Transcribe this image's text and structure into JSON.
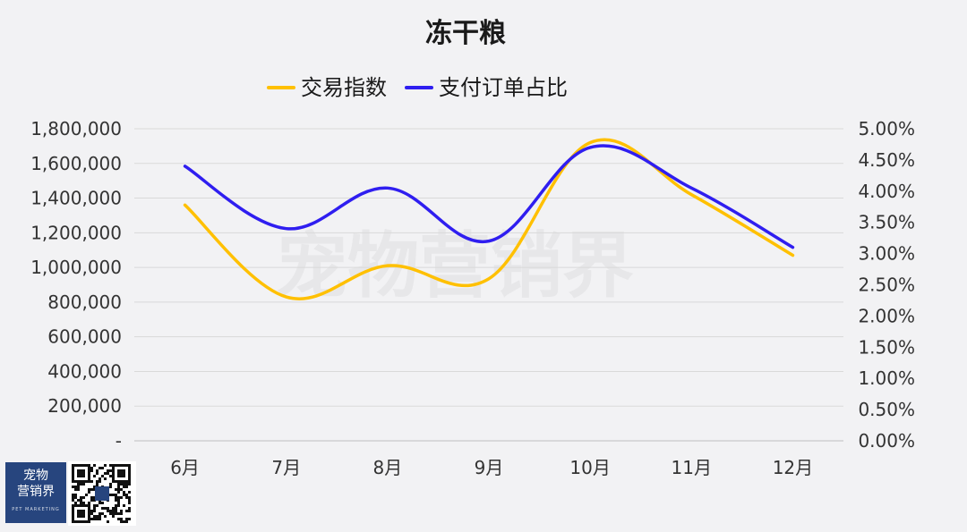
{
  "chart_data": {
    "type": "line",
    "title": "冻干粮",
    "categories": [
      "6月",
      "7月",
      "8月",
      "9月",
      "10月",
      "11月",
      "12月"
    ],
    "series": [
      {
        "name": "交易指数",
        "axis": "left",
        "color": "#ffc000",
        "values": [
          1360000,
          830000,
          1010000,
          935000,
          1720000,
          1420000,
          1070000
        ]
      },
      {
        "name": "支付订单占比",
        "axis": "right",
        "color": "#2f1ef0",
        "values": [
          4.4,
          3.4,
          4.05,
          3.2,
          4.7,
          4.05,
          3.1
        ]
      }
    ],
    "y_left": {
      "min": 0,
      "max": 1800000,
      "step": 200000,
      "ticks": [
        "-",
        "200,000",
        "400,000",
        "600,000",
        "800,000",
        "1,000,000",
        "1,200,000",
        "1,400,000",
        "1,600,000",
        "1,800,000"
      ]
    },
    "y_right": {
      "min": 0,
      "max": 5,
      "step": 0.5,
      "ticks": [
        "0.00%",
        "0.50%",
        "1.00%",
        "1.50%",
        "2.00%",
        "2.50%",
        "3.00%",
        "3.50%",
        "4.00%",
        "4.50%",
        "5.00%"
      ]
    },
    "legend_position": "top",
    "grid": true,
    "watermark": "宠物营销界"
  },
  "logo": {
    "text_line1": "宠物",
    "text_line2": "营销界",
    "sub": "PET MARKETING"
  }
}
